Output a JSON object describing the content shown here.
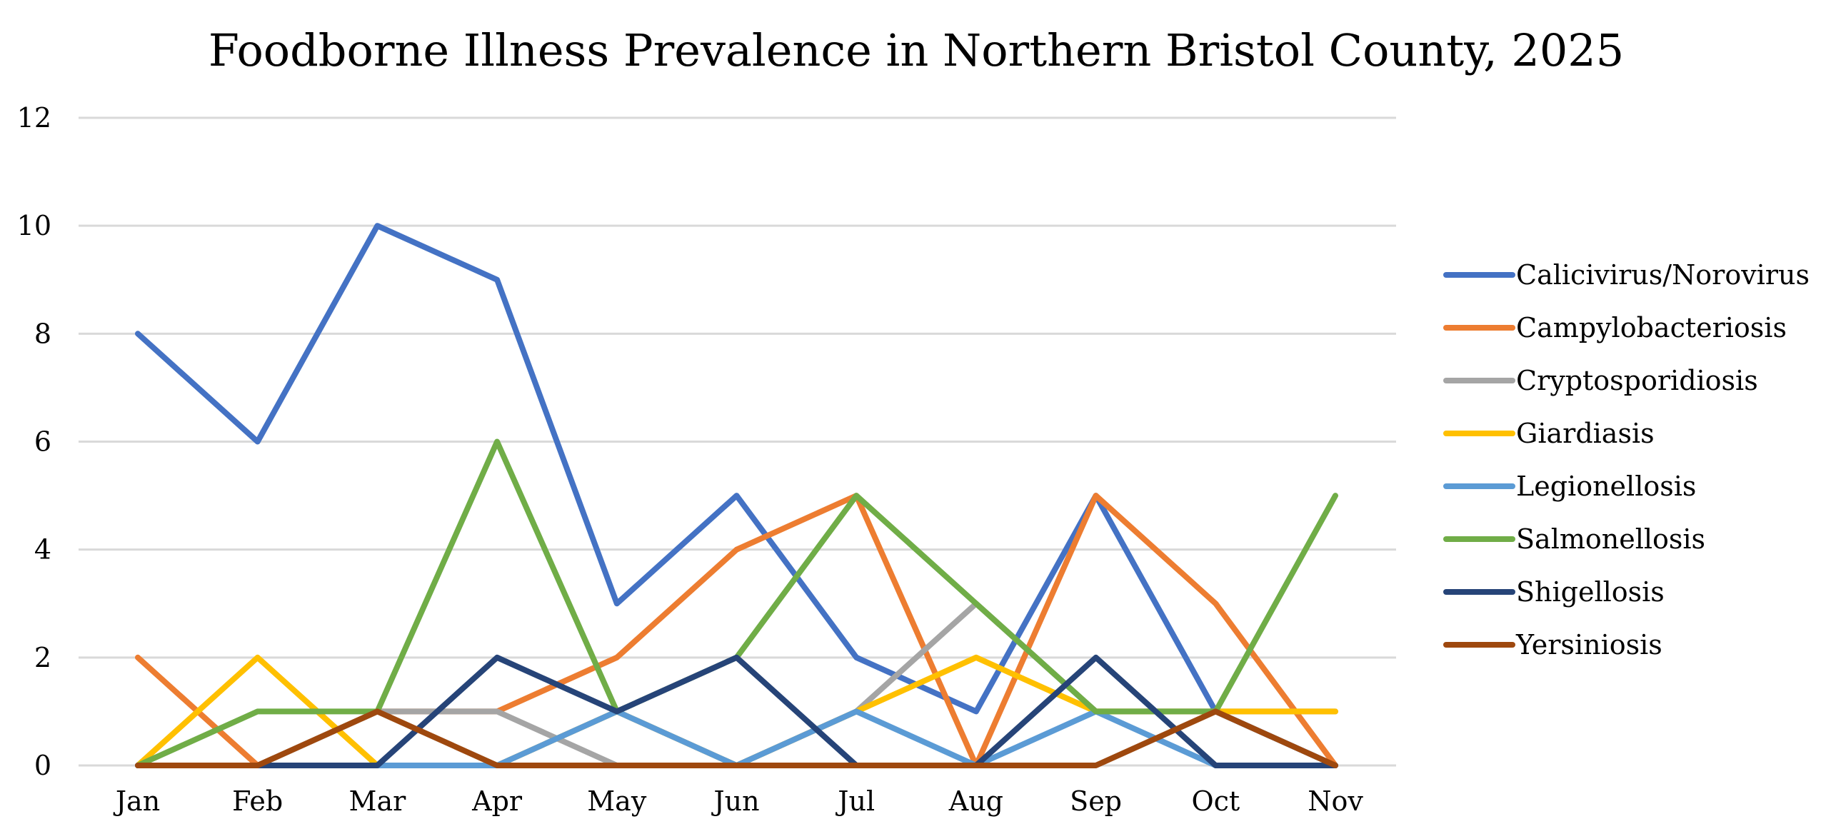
{
  "chart_data": {
    "type": "line",
    "title": "Foodborne Illness Prevalence in Northern Bristol County, 2025",
    "xlabel": "",
    "ylabel": "",
    "categories": [
      "Jan",
      "Feb",
      "Mar",
      "Apr",
      "May",
      "Jun",
      "Jul",
      "Aug",
      "Sep",
      "Oct",
      "Nov"
    ],
    "ylim": [
      0,
      12
    ],
    "yticks": [
      "0",
      "2",
      "4",
      "6",
      "8",
      "10",
      "12"
    ],
    "grid": true,
    "legend_position": "right",
    "series": [
      {
        "name": "Calicivirus/Norovirus",
        "color": "#4472C4",
        "values": [
          8,
          6,
          10,
          9,
          3,
          5,
          2,
          1,
          5,
          1,
          0
        ]
      },
      {
        "name": "Campylobacteriosis",
        "color": "#ED7D31",
        "values": [
          2,
          0,
          1,
          1,
          2,
          4,
          5,
          0,
          5,
          3,
          0
        ]
      },
      {
        "name": "Cryptosporidiosis",
        "color": "#A5A5A5",
        "values": [
          0,
          0,
          1,
          1,
          0,
          0,
          1,
          3,
          1,
          1,
          1
        ]
      },
      {
        "name": "Giardiasis",
        "color": "#FFC000",
        "values": [
          0,
          2,
          0,
          0,
          1,
          0,
          1,
          2,
          1,
          1,
          1
        ]
      },
      {
        "name": "Legionellosis",
        "color": "#5B9BD5",
        "values": [
          0,
          0,
          0,
          0,
          1,
          0,
          1,
          0,
          1,
          0,
          0
        ]
      },
      {
        "name": "Salmonellosis",
        "color": "#70AD47",
        "values": [
          0,
          1,
          1,
          6,
          1,
          2,
          5,
          3,
          1,
          1,
          5
        ]
      },
      {
        "name": "Shigellosis",
        "color": "#264478",
        "values": [
          0,
          0,
          0,
          2,
          1,
          2,
          0,
          0,
          2,
          0,
          0
        ]
      },
      {
        "name": "Yersiniosis",
        "color": "#9E480E",
        "values": [
          0,
          0,
          1,
          0,
          0,
          0,
          0,
          0,
          0,
          1,
          0
        ]
      }
    ]
  }
}
